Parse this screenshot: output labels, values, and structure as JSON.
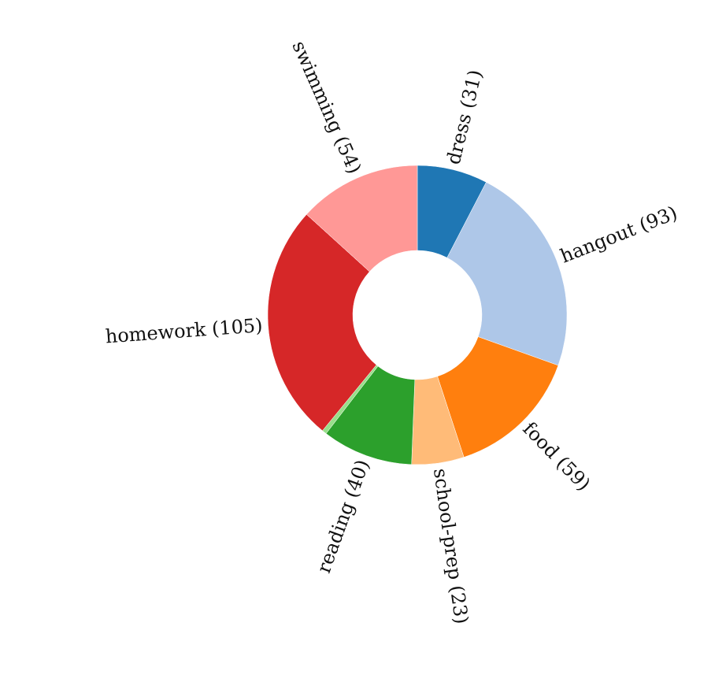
{
  "chart_data": {
    "type": "pie",
    "donut": true,
    "title": "",
    "slices": [
      {
        "name": "dress",
        "value": 31,
        "label": "dress (31)",
        "color": "#1f77b4"
      },
      {
        "name": "hangout",
        "value": 93,
        "label": "hangout (93)",
        "color": "#aec7e8"
      },
      {
        "name": "food",
        "value": 59,
        "label": "food (59)",
        "color": "#ff7f0e"
      },
      {
        "name": "school-prep",
        "value": 23,
        "label": "school-prep (23)",
        "color": "#ffbb78"
      },
      {
        "name": "reading",
        "value": 40,
        "label": "reading (40)",
        "color": "#2ca02c"
      },
      {
        "name": "",
        "value": 2,
        "label": "",
        "color": "#98df8a"
      },
      {
        "name": "homework",
        "value": 105,
        "label": "homework (105)",
        "color": "#d62728"
      },
      {
        "name": "swimming",
        "value": 54,
        "label": "swimming (54)",
        "color": "#ff9896"
      }
    ]
  }
}
